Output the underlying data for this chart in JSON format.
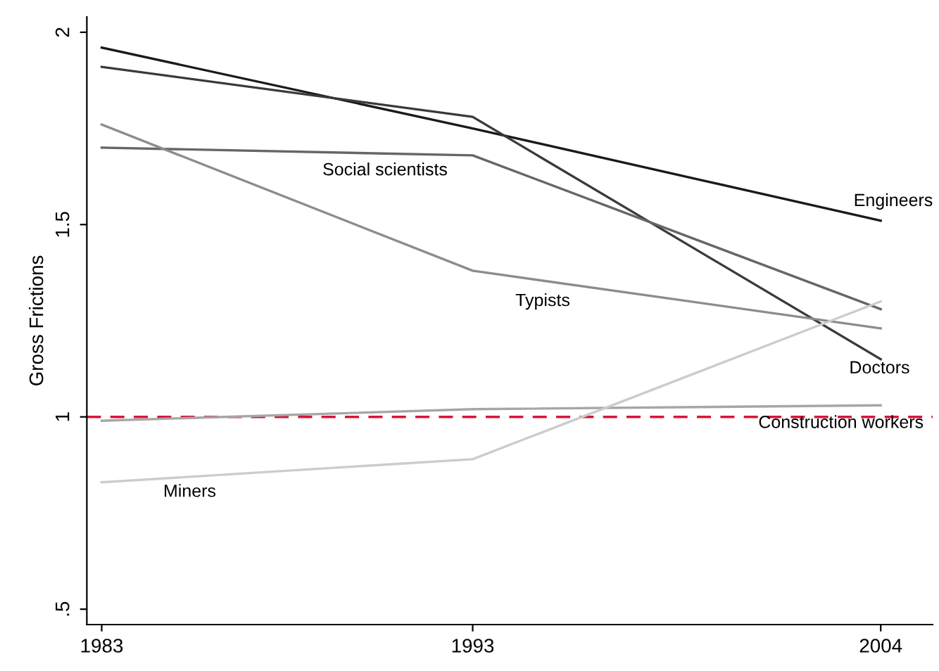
{
  "chart_data": {
    "type": "line",
    "ylabel": "Gross Frictions",
    "x": [
      1983,
      1993,
      2004
    ],
    "xlim": [
      1982.6,
      2005.4
    ],
    "xticks": [
      1983,
      1993,
      2004
    ],
    "ylim": [
      0.46,
      2.04
    ],
    "yticks": [
      {
        "value": 0.5,
        "label": ".5"
      },
      1,
      1.5,
      2
    ],
    "grid": false,
    "legend": false,
    "marker": "none",
    "line_style": "solid",
    "series": [
      {
        "name": "Engineers",
        "color": "#1a1a1a",
        "values": [
          1.96,
          1.75,
          1.51
        ]
      },
      {
        "name": "Doctors",
        "color": "#3a3a3a",
        "values": [
          1.91,
          1.78,
          1.15
        ]
      },
      {
        "name": "Social scientists",
        "color": "#666666",
        "values": [
          1.7,
          1.68,
          1.28
        ]
      },
      {
        "name": "Typists",
        "color": "#8c8c8c",
        "values": [
          1.76,
          1.38,
          1.23
        ]
      },
      {
        "name": "Construction workers",
        "color": "#a6a6a6",
        "values": [
          0.99,
          1.02,
          1.03
        ]
      },
      {
        "name": "Miners",
        "color": "#cccccc",
        "values": [
          0.83,
          0.89,
          1.3
        ]
      }
    ],
    "ref_lines": [
      {
        "axis": "y",
        "value": 1,
        "color": "#d6163c",
        "line_style": "dashed"
      }
    ]
  }
}
